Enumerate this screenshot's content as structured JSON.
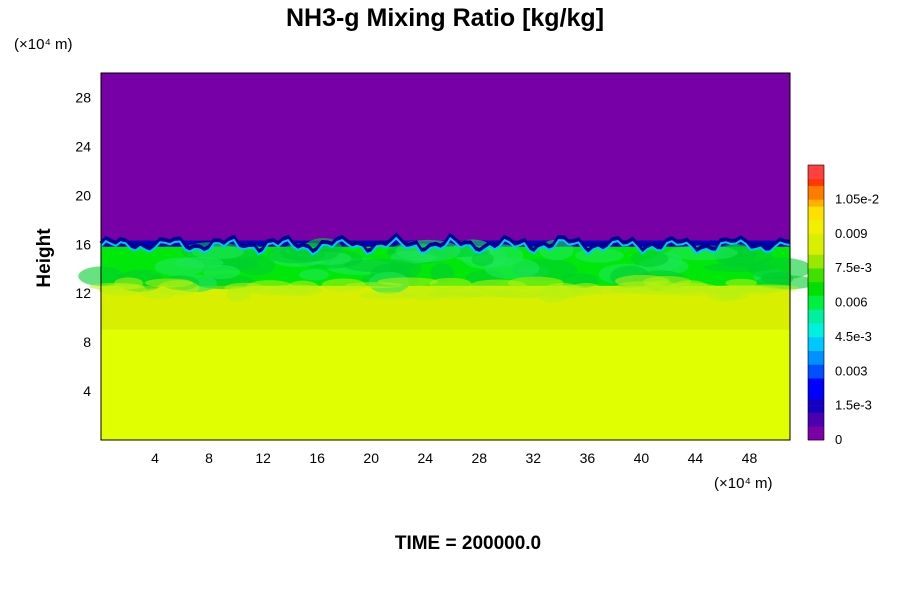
{
  "chart_data": {
    "type": "heatmap",
    "title": "NH3-g Mixing Ratio [kg/kg]",
    "ylabel": "Height",
    "x_unit": "(×10⁴ m)",
    "y_unit": "(×10⁴ m)",
    "time_label": "TIME = 200000.0",
    "xlim": [
      0,
      51
    ],
    "ylim": [
      0,
      30
    ],
    "x_ticks": [
      4,
      8,
      12,
      16,
      20,
      24,
      28,
      32,
      36,
      40,
      44,
      48
    ],
    "y_ticks": [
      4,
      8,
      12,
      16,
      20,
      24,
      28
    ],
    "colorbar": {
      "ticks": [
        {
          "value": 0,
          "label": "0"
        },
        {
          "value": 0.0015,
          "label": "1.5e-3"
        },
        {
          "value": 0.003,
          "label": "0.003"
        },
        {
          "value": 0.0045,
          "label": "4.5e-3"
        },
        {
          "value": 0.006,
          "label": "0.006"
        },
        {
          "value": 0.0075,
          "label": "7.5e-3"
        },
        {
          "value": 0.009,
          "label": "0.009"
        },
        {
          "value": 0.0105,
          "label": "1.05e-2"
        }
      ],
      "min": 0,
      "max": 0.012
    },
    "layers": [
      {
        "name": "upper",
        "y_from": 16.0,
        "y_to": 30,
        "value": 0,
        "color": "#7700a6"
      },
      {
        "name": "transition",
        "y_from": 15.6,
        "y_to": 16.3,
        "value": 0.0015,
        "color": "#0000b4"
      },
      {
        "name": "middle",
        "y_from": 12.5,
        "y_to": 15.8,
        "value": 0.0055,
        "color": "#00e80a"
      },
      {
        "name": "lower-mixed",
        "y_from": 9.0,
        "y_to": 12.6,
        "value": 0.0075,
        "color": "#d8f000"
      },
      {
        "name": "lower",
        "y_from": 0,
        "y_to": 9.0,
        "value": 0.0078,
        "color": "#e0ff00"
      }
    ]
  }
}
